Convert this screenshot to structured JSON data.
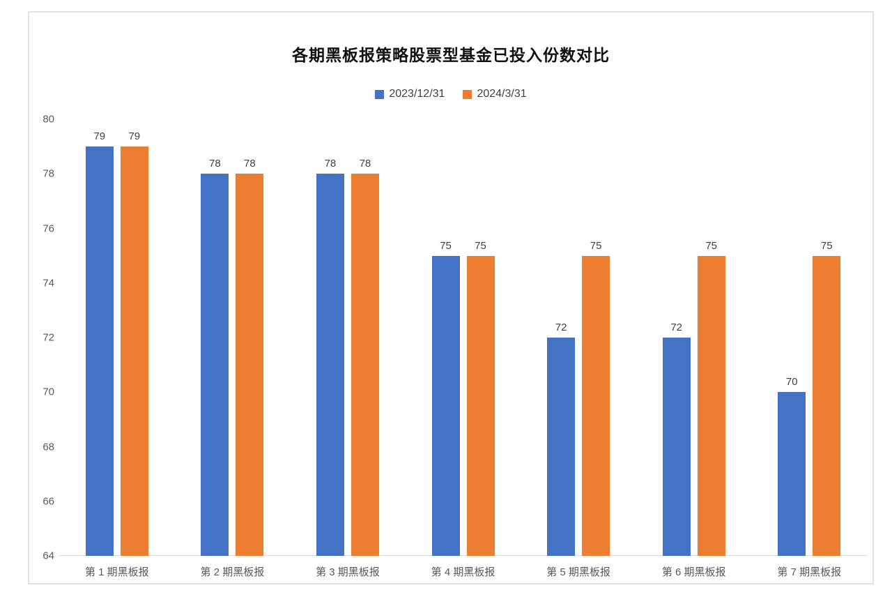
{
  "chart": {
    "title": "各期黑板报策略股票型基金已投入份数对比",
    "colors": {
      "series1": "#4472C4",
      "series2": "#ED7D31",
      "axis_line": "#d9d9d9",
      "axis_text": "#595959",
      "value_text": "#404040",
      "title_text": "#111111",
      "card_border": "#e2e2e2",
      "background": "#ffffff"
    }
  },
  "chart_data": {
    "type": "bar",
    "title": "各期黑板报策略股票型基金已投入份数对比",
    "categories": [
      "第 1 期黑板报",
      "第 2 期黑板报",
      "第 3 期黑板报",
      "第 4 期黑板报",
      "第 5 期黑板报",
      "第 6 期黑板报",
      "第 7 期黑板报"
    ],
    "series": [
      {
        "name": "2023/12/31",
        "color": "#4472C4",
        "values": [
          79,
          78,
          78,
          75,
          72,
          72,
          70
        ]
      },
      {
        "name": "2024/3/31",
        "color": "#ED7D31",
        "values": [
          79,
          78,
          78,
          75,
          75,
          75,
          75
        ]
      }
    ],
    "xlabel": "",
    "ylabel": "",
    "ylim": [
      64,
      80
    ],
    "yticks": [
      64,
      66,
      68,
      70,
      72,
      74,
      76,
      78,
      80
    ],
    "grid": false,
    "legend_position": "top",
    "value_labels": true
  }
}
